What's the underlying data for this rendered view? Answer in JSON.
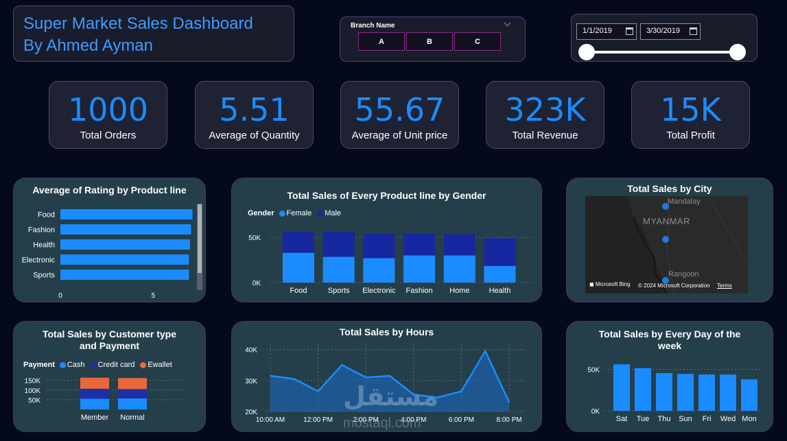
{
  "header": {
    "title_line1": "Super Market Sales Dashboard",
    "title_line2": "By Ahmed Ayman"
  },
  "branch_filter": {
    "label": "Branch Name",
    "options": [
      "A",
      "B",
      "C"
    ]
  },
  "date_filter": {
    "start": "1/1/2019",
    "end": "3/30/2019"
  },
  "kpis": [
    {
      "value": "1000",
      "label": "Total Orders"
    },
    {
      "value": "5.51",
      "label": "Average of Quantity"
    },
    {
      "value": "55.67",
      "label": "Average of Unit price"
    },
    {
      "value": "323K",
      "label": "Total Revenue"
    },
    {
      "value": "15K",
      "label": "Total Profit"
    }
  ],
  "colors": {
    "accent": "#1a8cff",
    "male": "#1727a0",
    "credit": "#1c2fa8",
    "ewallet": "#e8683a",
    "card_border": "#5a3f7a"
  },
  "chart_data": [
    {
      "type": "bar",
      "orientation": "horizontal",
      "title": "Average of Rating by Product line",
      "categories": [
        "Food",
        "Fashion",
        "Health",
        "Electronic",
        "Sports"
      ],
      "values": [
        7.11,
        7.03,
        6.98,
        6.92,
        6.92
      ],
      "xlim": [
        0,
        7.2
      ],
      "xticks": [
        "0",
        "5"
      ]
    },
    {
      "type": "bar",
      "stacked": true,
      "title": "Total Sales of Every Product line by Gender",
      "legend_title": "Gender",
      "categories": [
        "Food",
        "Sports",
        "Electronic",
        "Fashion",
        "Home",
        "Health"
      ],
      "series": [
        {
          "name": "Female",
          "values": [
            33000,
            28500,
            27000,
            30000,
            30000,
            18500
          ]
        },
        {
          "name": "Male",
          "values": [
            23000,
            27500,
            27000,
            24000,
            23500,
            30500
          ]
        }
      ],
      "ylim": [
        0,
        60000
      ],
      "yticks": [
        "0K",
        "50K"
      ]
    },
    {
      "type": "map",
      "title": "Total Sales by City",
      "labels": [
        "Mandalay",
        "MYANMAR",
        "Rangoon"
      ],
      "provider": "Microsoft Bing",
      "copyright": "© 2024 Microsoft Corporation",
      "terms": "Terms"
    },
    {
      "type": "bar",
      "stacked": true,
      "title_line1": "Total Sales by Customer type",
      "title_line2": "and Payment",
      "legend_title": "Payment",
      "categories": [
        "Member",
        "Normal"
      ],
      "series": [
        {
          "name": "Cash",
          "values": [
            55000,
            57000
          ]
        },
        {
          "name": "Credit card",
          "values": [
            52000,
            48000
          ]
        },
        {
          "name": "Ewallet",
          "values": [
            57000,
            57000
          ]
        }
      ],
      "ylim": [
        0,
        170000
      ],
      "yticks": [
        "50K",
        "100K",
        "150K"
      ]
    },
    {
      "type": "area",
      "title": "Total Sales by Hours",
      "x": [
        10,
        11,
        12,
        13,
        14,
        15,
        16,
        17,
        18,
        19,
        20
      ],
      "values": [
        31500,
        30500,
        26500,
        35000,
        31000,
        31500,
        25500,
        24500,
        26500,
        39500,
        23000
      ],
      "xticks": [
        "10:00 AM",
        "12:00 PM",
        "2:00 PM",
        "4:00 PM",
        "6:00 PM",
        "8:00 PM"
      ],
      "ylim": [
        20000,
        41000
      ],
      "yticks": [
        "20K",
        "30K",
        "40K"
      ]
    },
    {
      "type": "bar",
      "title_line1": "Total Sales by Every Day of the",
      "title_line2": "week",
      "categories": [
        "Sat",
        "Tue",
        "Thu",
        "Sun",
        "Fri",
        "Wed",
        "Mon"
      ],
      "values": [
        56000,
        51500,
        45500,
        44500,
        43900,
        43700,
        37900
      ],
      "ylim": [
        0,
        62000
      ],
      "yticks": [
        "0K",
        "50K"
      ]
    }
  ],
  "watermark": {
    "arabic": "مستقل",
    "latin": "mostaql.com"
  }
}
